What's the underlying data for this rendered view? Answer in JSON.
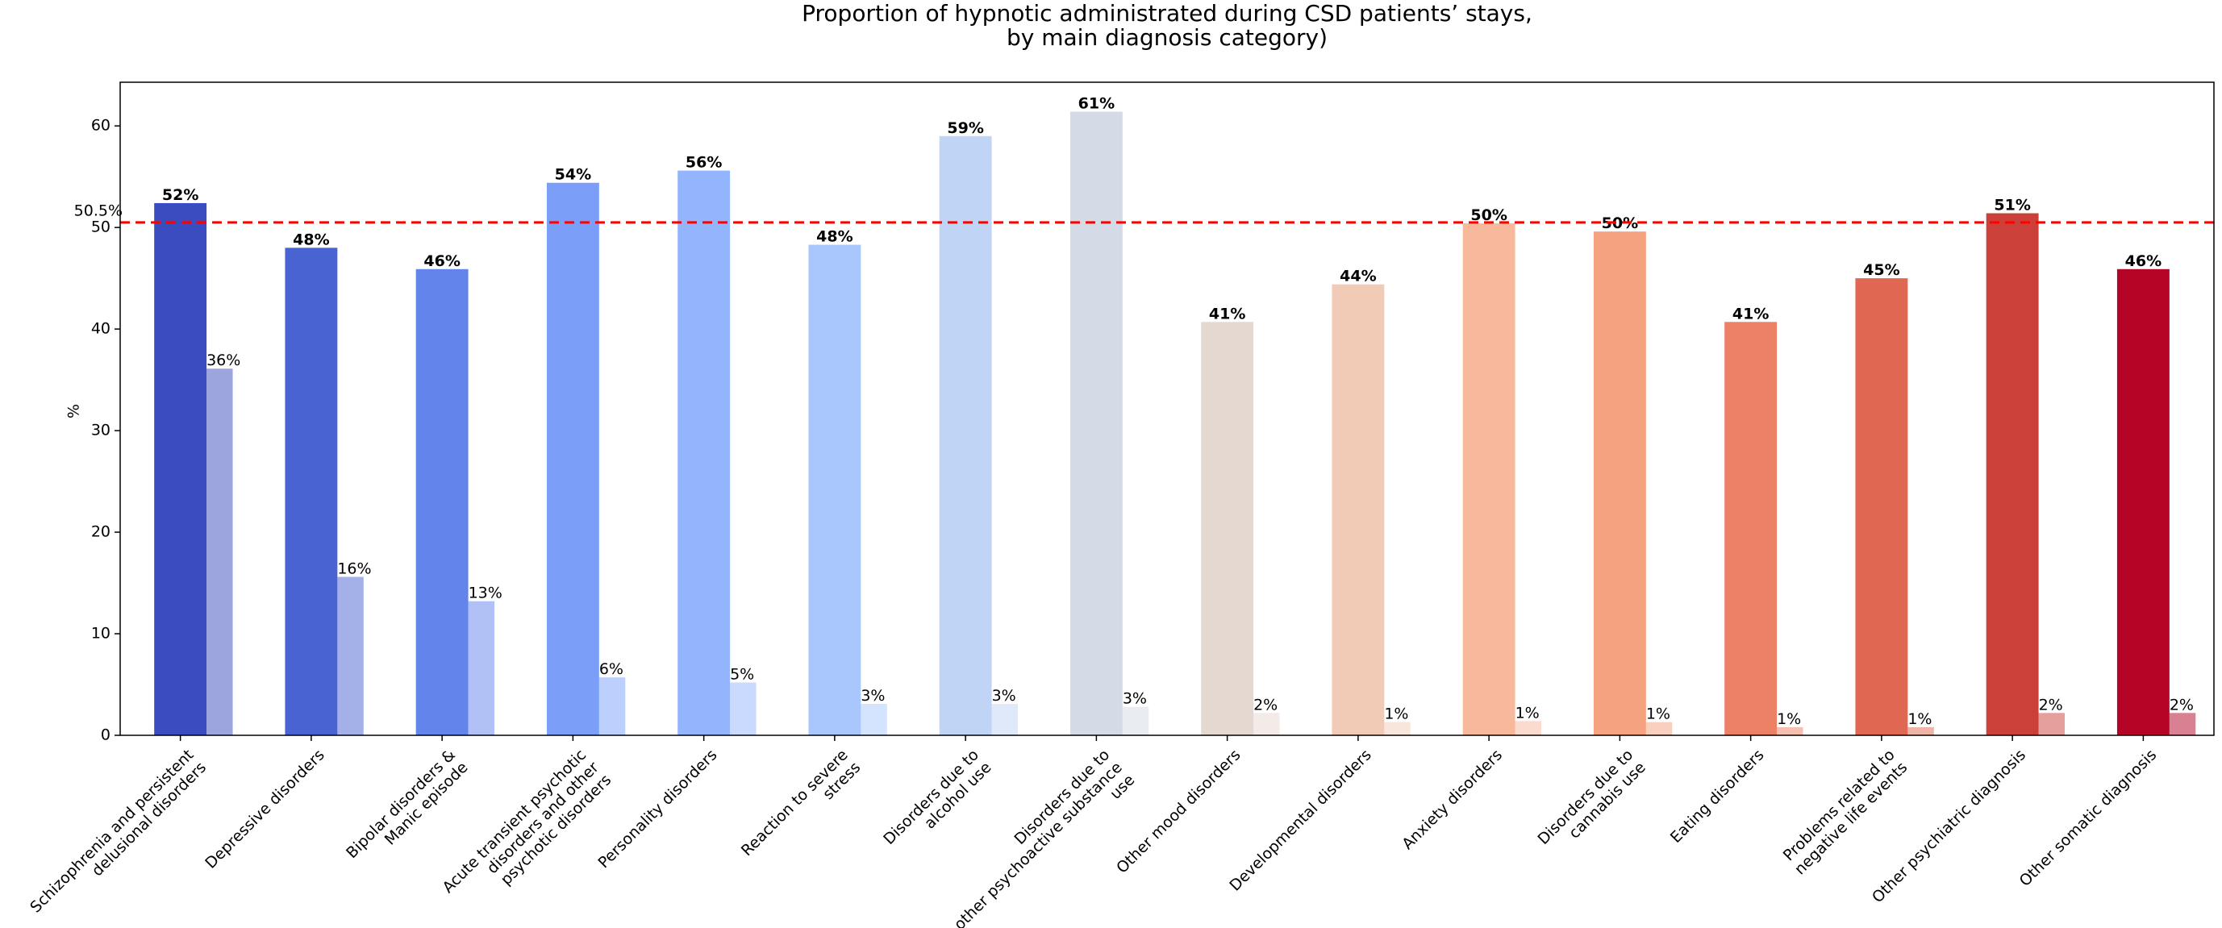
{
  "chart_data": {
    "type": "bar",
    "title": [
      "Proportion of hypnotic administrated during CSD patients’ stays,",
      "by main diagnosis category)"
    ],
    "y_label": "%",
    "categories": [
      "Schizophrenia and persistent\ndelusional disorders",
      "Depressive disorders",
      "Bipolar disorders &\nManic episode",
      "Acute transient psychotic\ndisorders and other\npsychotic disorders",
      "Personality disorders",
      "Reaction to severe\nstress",
      "Disorders due to\nalcohol use",
      "Disorders due to\nother psychoactive substance\nuse",
      "Other mood disorders",
      "Developmental disorders",
      "Anxiety disorders",
      "Disorders due to\ncannabis use",
      "Eating disorders",
      "Problems related to\nnegative life events",
      "Other psychiatric diagnosis",
      "Other somatic diagnosis"
    ],
    "series": [
      {
        "values": [
          52.4,
          48.0,
          45.9,
          54.4,
          55.6,
          48.3,
          59.0,
          61.4,
          40.7,
          44.4,
          50.4,
          49.6,
          40.7,
          45.0,
          51.4,
          45.9
        ],
        "value_labels": [
          "52%",
          "48%",
          "46%",
          "54%",
          "56%",
          "48%",
          "59%",
          "61%",
          "41%",
          "44%",
          "50%",
          "50%",
          "41%",
          "45%",
          "51%",
          "46%"
        ],
        "label_color": "#000000",
        "opacity": 1
      },
      {
        "values": [
          36.1,
          15.6,
          13.2,
          5.7,
          5.2,
          3.1,
          3.1,
          2.8,
          2.2,
          1.3,
          1.4,
          1.3,
          0.8,
          0.8,
          2.2,
          2.2
        ],
        "value_labels": [
          "36%",
          "16%",
          "13%",
          "6%",
          "5%",
          "3%",
          "3%",
          "3%",
          "2%",
          "1%",
          "1%",
          "1%",
          "1%",
          "1%",
          "2%",
          "2%"
        ],
        "label_color": "#800080",
        "opacity": 0.5
      }
    ],
    "colors": [
      "#3b4cc0",
      "#4a63d3",
      "#6384eb",
      "#7b9ff9",
      "#93b5fe",
      "#aac7fd",
      "#c0d4f5",
      "#d4dbe6",
      "#e5d8d1",
      "#f2cbb7",
      "#f7b89c",
      "#f4a27f",
      "#ec8165",
      "#e06752",
      "#cc403a",
      "#b40426"
    ],
    "reference_line": {
      "value": 50.5,
      "label": "50.5%",
      "color": "#ff0000"
    },
    "ylim": [
      0,
      64.3
    ],
    "yticks": [
      0,
      10,
      20,
      30,
      40,
      50,
      60
    ]
  }
}
